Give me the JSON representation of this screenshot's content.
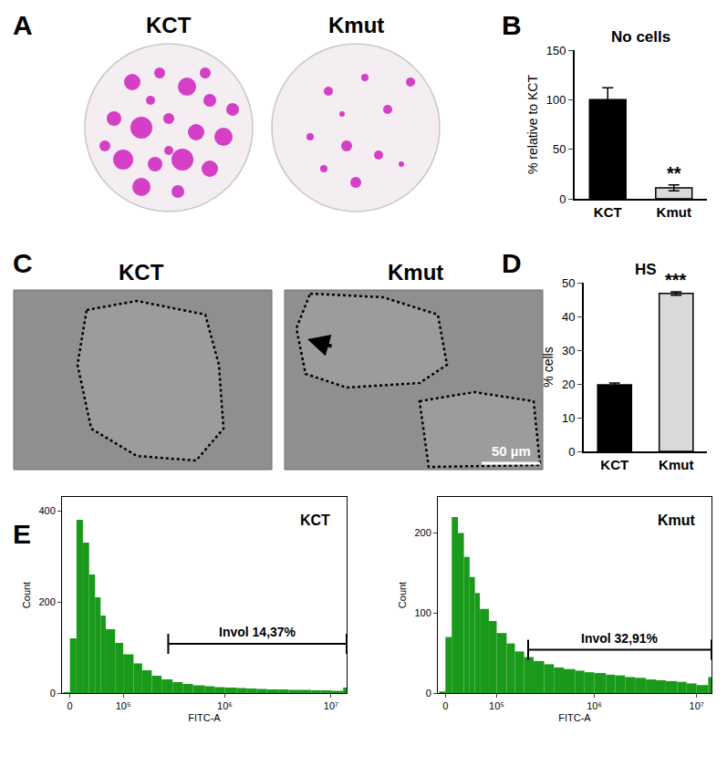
{
  "images": [
    {
      "panel": "A",
      "titles": [
        "KCT",
        "Kmut"
      ]
    },
    {
      "panel": "C",
      "titles": [
        "KCT",
        "Kmut"
      ],
      "scale_bar": "50 µm"
    }
  ],
  "chart_data": [
    {
      "panel": "B",
      "type": "bar",
      "title": "No cells",
      "ylabel": "% relative to KCT",
      "categories": [
        "KCT",
        "Kmut"
      ],
      "values": [
        100,
        11
      ],
      "errors": [
        12,
        3
      ],
      "colors": [
        "#000000",
        "#d9d9d9"
      ],
      "ylim": [
        0,
        150
      ],
      "yticks": [
        0,
        50,
        100,
        150
      ],
      "annotations": [
        {
          "category": "Kmut",
          "text": "**"
        }
      ]
    },
    {
      "panel": "D",
      "type": "bar",
      "title": "HS",
      "ylabel": "% cells",
      "categories": [
        "KCT",
        "Kmut"
      ],
      "values": [
        19.7,
        46.8
      ],
      "errors": [
        0.6,
        0.5
      ],
      "colors": [
        "#000000",
        "#d9d9d9"
      ],
      "ylim": [
        0,
        50
      ],
      "yticks": [
        0,
        10,
        20,
        30,
        40,
        50
      ],
      "annotations": [
        {
          "category": "Kmut",
          "text": "***"
        }
      ]
    },
    {
      "panel": "E",
      "type": "histogram",
      "title": "KCT",
      "xlabel": "FITC-A",
      "ylabel": "Count",
      "bins": [
        -10000,
        0,
        10000,
        20000,
        30000,
        40000,
        50000,
        60000,
        80000,
        100000,
        130000,
        160000,
        200000,
        250000,
        320000,
        400000,
        500000,
        650000,
        800000,
        1000000,
        1300000,
        1600000,
        2000000,
        2500000,
        3200000,
        4000000,
        5000000,
        6500000,
        8000000,
        10000000,
        13000000,
        14000000
      ],
      "counts": [
        2,
        120,
        380,
        330,
        260,
        210,
        170,
        140,
        110,
        85,
        65,
        50,
        38,
        30,
        24,
        20,
        17,
        15,
        13,
        12,
        11,
        10,
        9,
        8,
        8,
        7,
        7,
        6,
        6,
        5,
        12
      ],
      "color": "#1a9a1a",
      "xlim": [
        -12000,
        14000000
      ],
      "xticks": [
        0,
        {
          "value": 100000,
          "label": "10⁵"
        },
        {
          "value": 1000000,
          "label": "10⁶"
        },
        {
          "value": 10000000,
          "label": "10⁷"
        }
      ],
      "ylim": [
        0,
        430
      ],
      "yticks": [
        0,
        200,
        400
      ],
      "gate": {
        "label": "Invol 14,37%",
        "from": 290000,
        "to": 14000000,
        "y": 108
      }
    },
    {
      "panel": "E",
      "type": "histogram",
      "title": "Kmut",
      "xlabel": "FITC-A",
      "ylabel": "Count",
      "bins": [
        -10000,
        0,
        10000,
        20000,
        30000,
        40000,
        50000,
        60000,
        80000,
        100000,
        130000,
        160000,
        200000,
        250000,
        320000,
        400000,
        500000,
        650000,
        800000,
        1000000,
        1300000,
        1600000,
        2000000,
        2500000,
        3200000,
        4000000,
        5000000,
        6500000,
        8000000,
        10000000,
        13000000,
        14000000
      ],
      "counts": [
        2,
        70,
        220,
        200,
        170,
        145,
        125,
        105,
        90,
        75,
        62,
        52,
        45,
        40,
        36,
        32,
        30,
        28,
        26,
        25,
        23,
        22,
        20,
        19,
        17,
        16,
        15,
        14,
        12,
        10,
        20
      ],
      "color": "#1a9a1a",
      "xlim": [
        -12000,
        14000000
      ],
      "xticks": [
        0,
        {
          "value": 100000,
          "label": "10⁵"
        },
        {
          "value": 1000000,
          "label": "10⁶"
        },
        {
          "value": 10000000,
          "label": "10⁷"
        }
      ],
      "ylim": [
        0,
        245
      ],
      "yticks": [
        0,
        100,
        200
      ],
      "gate": {
        "label": "Invol 32,91%",
        "from": 220000,
        "to": 14000000,
        "y": 54
      }
    }
  ]
}
